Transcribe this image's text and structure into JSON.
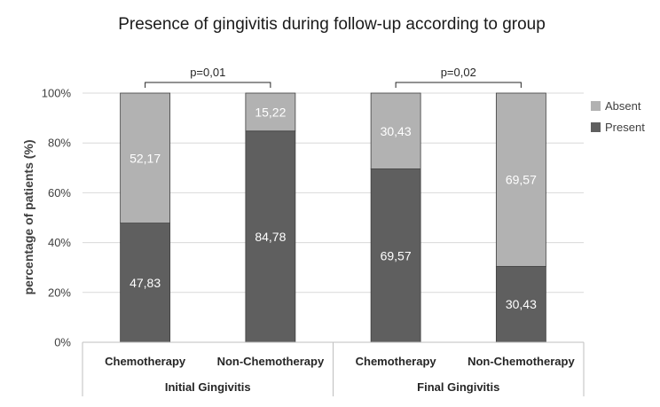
{
  "chart_data": {
    "type": "bar",
    "stacked": true,
    "title": "Presence of gingivitis during follow-up according to group",
    "ylabel": "percentage of patients (%)",
    "xlabel": "",
    "ylim": [
      0,
      100
    ],
    "yticks": [
      "0%",
      "20%",
      "40%",
      "60%",
      "80%",
      "100%"
    ],
    "grid": true,
    "legend_position": "right",
    "groups": [
      {
        "label": "Initial Gingivitis",
        "categories": [
          "Chemotherapy",
          "Non-Chemotherapy"
        ],
        "pvalue": "p=0,01"
      },
      {
        "label": "Final Gingivitis",
        "categories": [
          "Chemotherapy",
          "Non-Chemotherapy"
        ],
        "pvalue": "p=0,02"
      }
    ],
    "categories": [
      "Chemotherapy",
      "Non-Chemotherapy",
      "Chemotherapy",
      "Non-Chemotherapy"
    ],
    "series": [
      {
        "name": "Present",
        "values": [
          47.83,
          84.78,
          69.57,
          30.43
        ],
        "labels": [
          "47,83",
          "84,78",
          "69,57",
          "30,43"
        ],
        "color": "#5f5f5f"
      },
      {
        "name": "Absent",
        "values": [
          52.17,
          15.22,
          30.43,
          69.57
        ],
        "labels": [
          "52,17",
          "15,22",
          "30,43",
          "69,57"
        ],
        "color": "#b2b2b2"
      }
    ],
    "legend": [
      "Absent",
      "Present"
    ]
  }
}
